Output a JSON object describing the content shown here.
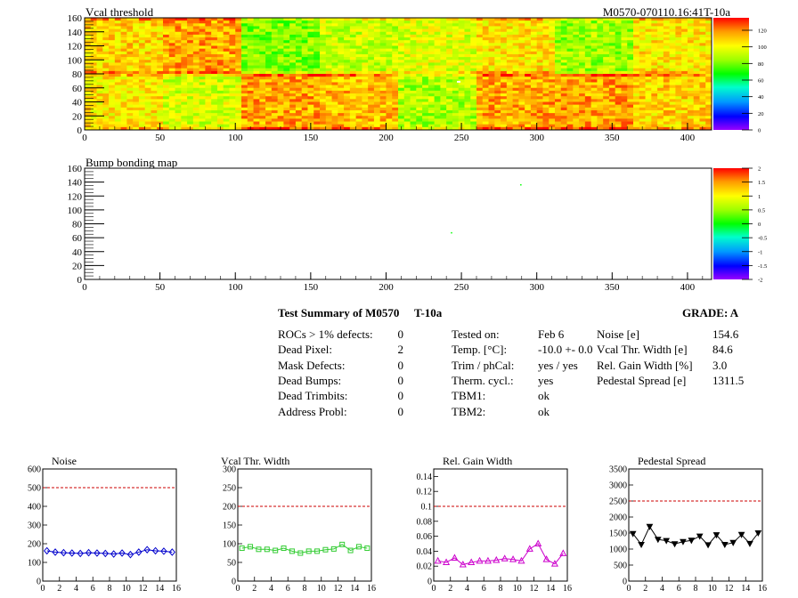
{
  "header": {
    "map1_title": "Vcal threshold",
    "module_id": "M0570-070110.16:41T-10a",
    "map2_title": "Bump bonding map"
  },
  "chart_data": [
    {
      "type": "heatmap",
      "title": "Vcal threshold",
      "x_ticks": [
        "0",
        "50",
        "100",
        "150",
        "200",
        "250",
        "300",
        "350",
        "400"
      ],
      "y_ticks": [
        "0",
        "20",
        "40",
        "60",
        "80",
        "100",
        "120",
        "140",
        "160"
      ],
      "xlim": [
        0,
        416
      ],
      "ylim": [
        0,
        160
      ],
      "palette_ticks": [
        "0",
        "20",
        "40",
        "60",
        "80",
        "100",
        "120"
      ],
      "zlim": [
        0,
        135
      ],
      "roc_means_top": [
        100,
        85,
        92,
        105,
        92,
        112,
        80,
        95,
        108,
        115,
        82,
        92,
        95,
        105,
        86,
        105
      ],
      "roc_means_bottom": [
        104,
        94,
        115,
        112,
        88,
        115,
        116,
        108,
        82,
        90,
        96,
        82,
        104,
        98,
        105,
        90
      ]
    },
    {
      "type": "heatmap",
      "title": "Bump bonding map",
      "x_ticks": [
        "0",
        "50",
        "100",
        "150",
        "200",
        "250",
        "300",
        "350",
        "400"
      ],
      "y_ticks": [
        "0",
        "20",
        "40",
        "60",
        "80",
        "100",
        "120",
        "140",
        "160"
      ],
      "xlim": [
        0,
        416
      ],
      "ylim": [
        0,
        160
      ],
      "palette_ticks": [
        "2",
        "1.5",
        "1",
        "0.5",
        "0",
        "-0.5",
        "-1",
        "-1.5",
        "-2"
      ],
      "zlim": [
        -2,
        2
      ],
      "points": [
        {
          "x": 289,
          "y": 137,
          "z": 0
        },
        {
          "x": 243,
          "y": 68,
          "z": 0
        }
      ]
    },
    {
      "type": "line",
      "title": "Noise",
      "x_ticks": [
        "0",
        "2",
        "4",
        "6",
        "8",
        "10",
        "12",
        "14",
        "16"
      ],
      "y_ticks": [
        "0",
        "100",
        "200",
        "300",
        "400",
        "500",
        "600"
      ],
      "xlim": [
        0,
        16
      ],
      "ylim": [
        0,
        600
      ],
      "cut": 500,
      "color": "#0000cc",
      "marker": "diamond",
      "values": [
        162,
        155,
        152,
        150,
        148,
        152,
        150,
        148,
        145,
        150,
        142,
        155,
        168,
        162,
        160,
        155
      ]
    },
    {
      "type": "line",
      "title": "Vcal Thr. Width",
      "x_ticks": [
        "0",
        "2",
        "4",
        "6",
        "8",
        "10",
        "12",
        "14",
        "16"
      ],
      "y_ticks": [
        "0",
        "50",
        "100",
        "150",
        "200",
        "250",
        "300"
      ],
      "xlim": [
        0,
        16
      ],
      "ylim": [
        0,
        300
      ],
      "cut": 200,
      "color": "#33cc33",
      "marker": "square",
      "values": [
        88,
        92,
        85,
        85,
        82,
        88,
        80,
        75,
        80,
        80,
        84,
        86,
        98,
        82,
        92,
        88
      ]
    },
    {
      "type": "line",
      "title": "Rel. Gain Width",
      "x_ticks": [
        "0",
        "2",
        "4",
        "6",
        "8",
        "10",
        "12",
        "14",
        "16"
      ],
      "y_ticks": [
        "0",
        "0.02",
        "0.04",
        "0.06",
        "0.08",
        "0.1",
        "0.12",
        "0.14"
      ],
      "xlim": [
        0,
        16
      ],
      "ylim": [
        0,
        0.15
      ],
      "cut": 0.1,
      "color": "#cc00cc",
      "marker": "triangle",
      "values": [
        0.027,
        0.025,
        0.031,
        0.022,
        0.025,
        0.027,
        0.027,
        0.028,
        0.03,
        0.029,
        0.027,
        0.043,
        0.05,
        0.029,
        0.023,
        0.037
      ]
    },
    {
      "type": "line",
      "title": "Pedestal Spread",
      "x_ticks": [
        "0",
        "2",
        "4",
        "6",
        "8",
        "10",
        "12",
        "14",
        "16"
      ],
      "y_ticks": [
        "0",
        "500",
        "1000",
        "1500",
        "2000",
        "2500",
        "3000",
        "3500"
      ],
      "xlim": [
        0,
        16
      ],
      "ylim": [
        0,
        3500
      ],
      "cut": 2500,
      "color": "#000000",
      "marker": "triangle-down",
      "values": [
        1480,
        1140,
        1700,
        1300,
        1260,
        1160,
        1230,
        1270,
        1400,
        1130,
        1440,
        1140,
        1200,
        1450,
        1170,
        1500
      ]
    }
  ],
  "summary": {
    "title": "Test Summary of M0570",
    "temp_label": "T-10a",
    "grade": "GRADE:  A",
    "col1": [
      {
        "label": "ROCs > 1% defects:",
        "value": "0"
      },
      {
        "label": "Dead Pixel:",
        "value": "2"
      },
      {
        "label": "Mask Defects:",
        "value": "0"
      },
      {
        "label": "Dead Bumps:",
        "value": "0"
      },
      {
        "label": "Dead Trimbits:",
        "value": "0"
      },
      {
        "label": "Address Probl:",
        "value": "0"
      }
    ],
    "col2": [
      {
        "label": "Tested on:",
        "value": "Feb 6"
      },
      {
        "label": "Temp. [°C]:",
        "value": "-10.0 +- 0.0"
      },
      {
        "label": "Trim / phCal:",
        "value": "yes / yes"
      },
      {
        "label": "Therm. cycl.:",
        "value": "yes"
      },
      {
        "label": "TBM1:",
        "value": "ok"
      },
      {
        "label": "TBM2:",
        "value": "ok"
      }
    ],
    "col3": [
      {
        "label": "Noise [e]",
        "value": "154.6"
      },
      {
        "label": "Vcal Thr. Width [e]",
        "value": "84.6"
      },
      {
        "label": "Rel. Gain Width [%]",
        "value": "3.0"
      },
      {
        "label": "Pedestal Spread [e]",
        "value": "1311.5"
      }
    ]
  }
}
